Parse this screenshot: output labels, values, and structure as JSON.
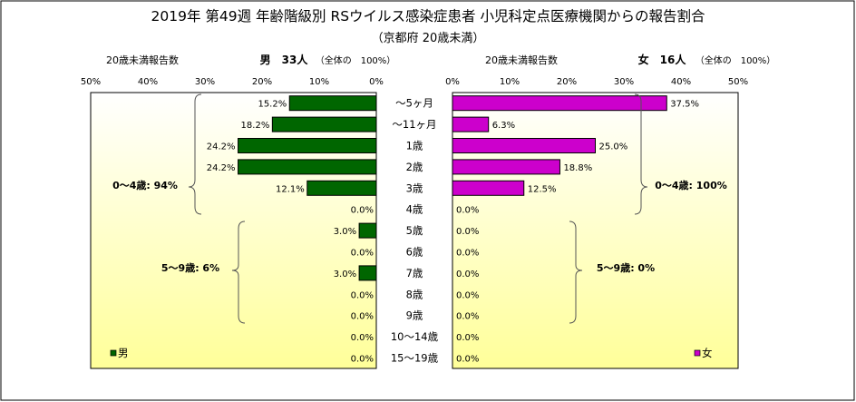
{
  "title": "2019年 第49週 年齢階級別 RSウイルス感染症患者 小児科定点医療機関からの報告割合",
  "subtitle": "（京都府 20歳未満）",
  "chart_data": {
    "type": "bar",
    "orientation": "horizontal-butterfly",
    "categories": [
      "～5ヶ月",
      "～11ヶ月",
      "1歳",
      "2歳",
      "3歳",
      "4歳",
      "5歳",
      "6歳",
      "7歳",
      "8歳",
      "9歳",
      "10～14歳",
      "15～19歳"
    ],
    "series": [
      {
        "name": "男",
        "header_label": "20歳未満報告数",
        "header_title": "男　33人",
        "header_note": "（全体の　100%）",
        "color": "#006600",
        "values": [
          15.2,
          18.2,
          24.2,
          24.2,
          12.1,
          0.0,
          3.0,
          0.0,
          3.0,
          0.0,
          0.0,
          0.0,
          0.0
        ],
        "value_labels": [
          "15.2%",
          "18.2%",
          "24.2%",
          "24.2%",
          "12.1%",
          "0.0%",
          "3.0%",
          "0.0%",
          "3.0%",
          "0.0%",
          "0.0%",
          "0.0%",
          "0.0%"
        ],
        "axis_ticks": [
          "50%",
          "40%",
          "30%",
          "20%",
          "10%",
          "0%"
        ],
        "xlim": [
          50,
          0
        ],
        "annotations": [
          "0～4歳: 94%",
          "5～9歳: 6%"
        ],
        "legend_position": "bottom-left"
      },
      {
        "name": "女",
        "header_label": "20歳未満報告数",
        "header_title": "女　16人",
        "header_note": "（全体の　100%）",
        "color": "#cc00cc",
        "values": [
          37.5,
          6.3,
          25.0,
          18.8,
          12.5,
          0.0,
          0.0,
          0.0,
          0.0,
          0.0,
          0.0,
          0.0,
          0.0
        ],
        "value_labels": [
          "37.5%",
          "6.3%",
          "25.0%",
          "18.8%",
          "12.5%",
          "0.0%",
          "0.0%",
          "0.0%",
          "0.0%",
          "0.0%",
          "0.0%",
          "0.0%",
          "0.0%"
        ],
        "axis_ticks": [
          "0%",
          "10%",
          "20%",
          "30%",
          "40%",
          "50%"
        ],
        "xlim": [
          0,
          50
        ],
        "annotations": [
          "0～4歳: 100%",
          "5～9歳: 0%"
        ],
        "legend_position": "bottom-right"
      }
    ],
    "plot_background": "gradient white to light yellow"
  }
}
